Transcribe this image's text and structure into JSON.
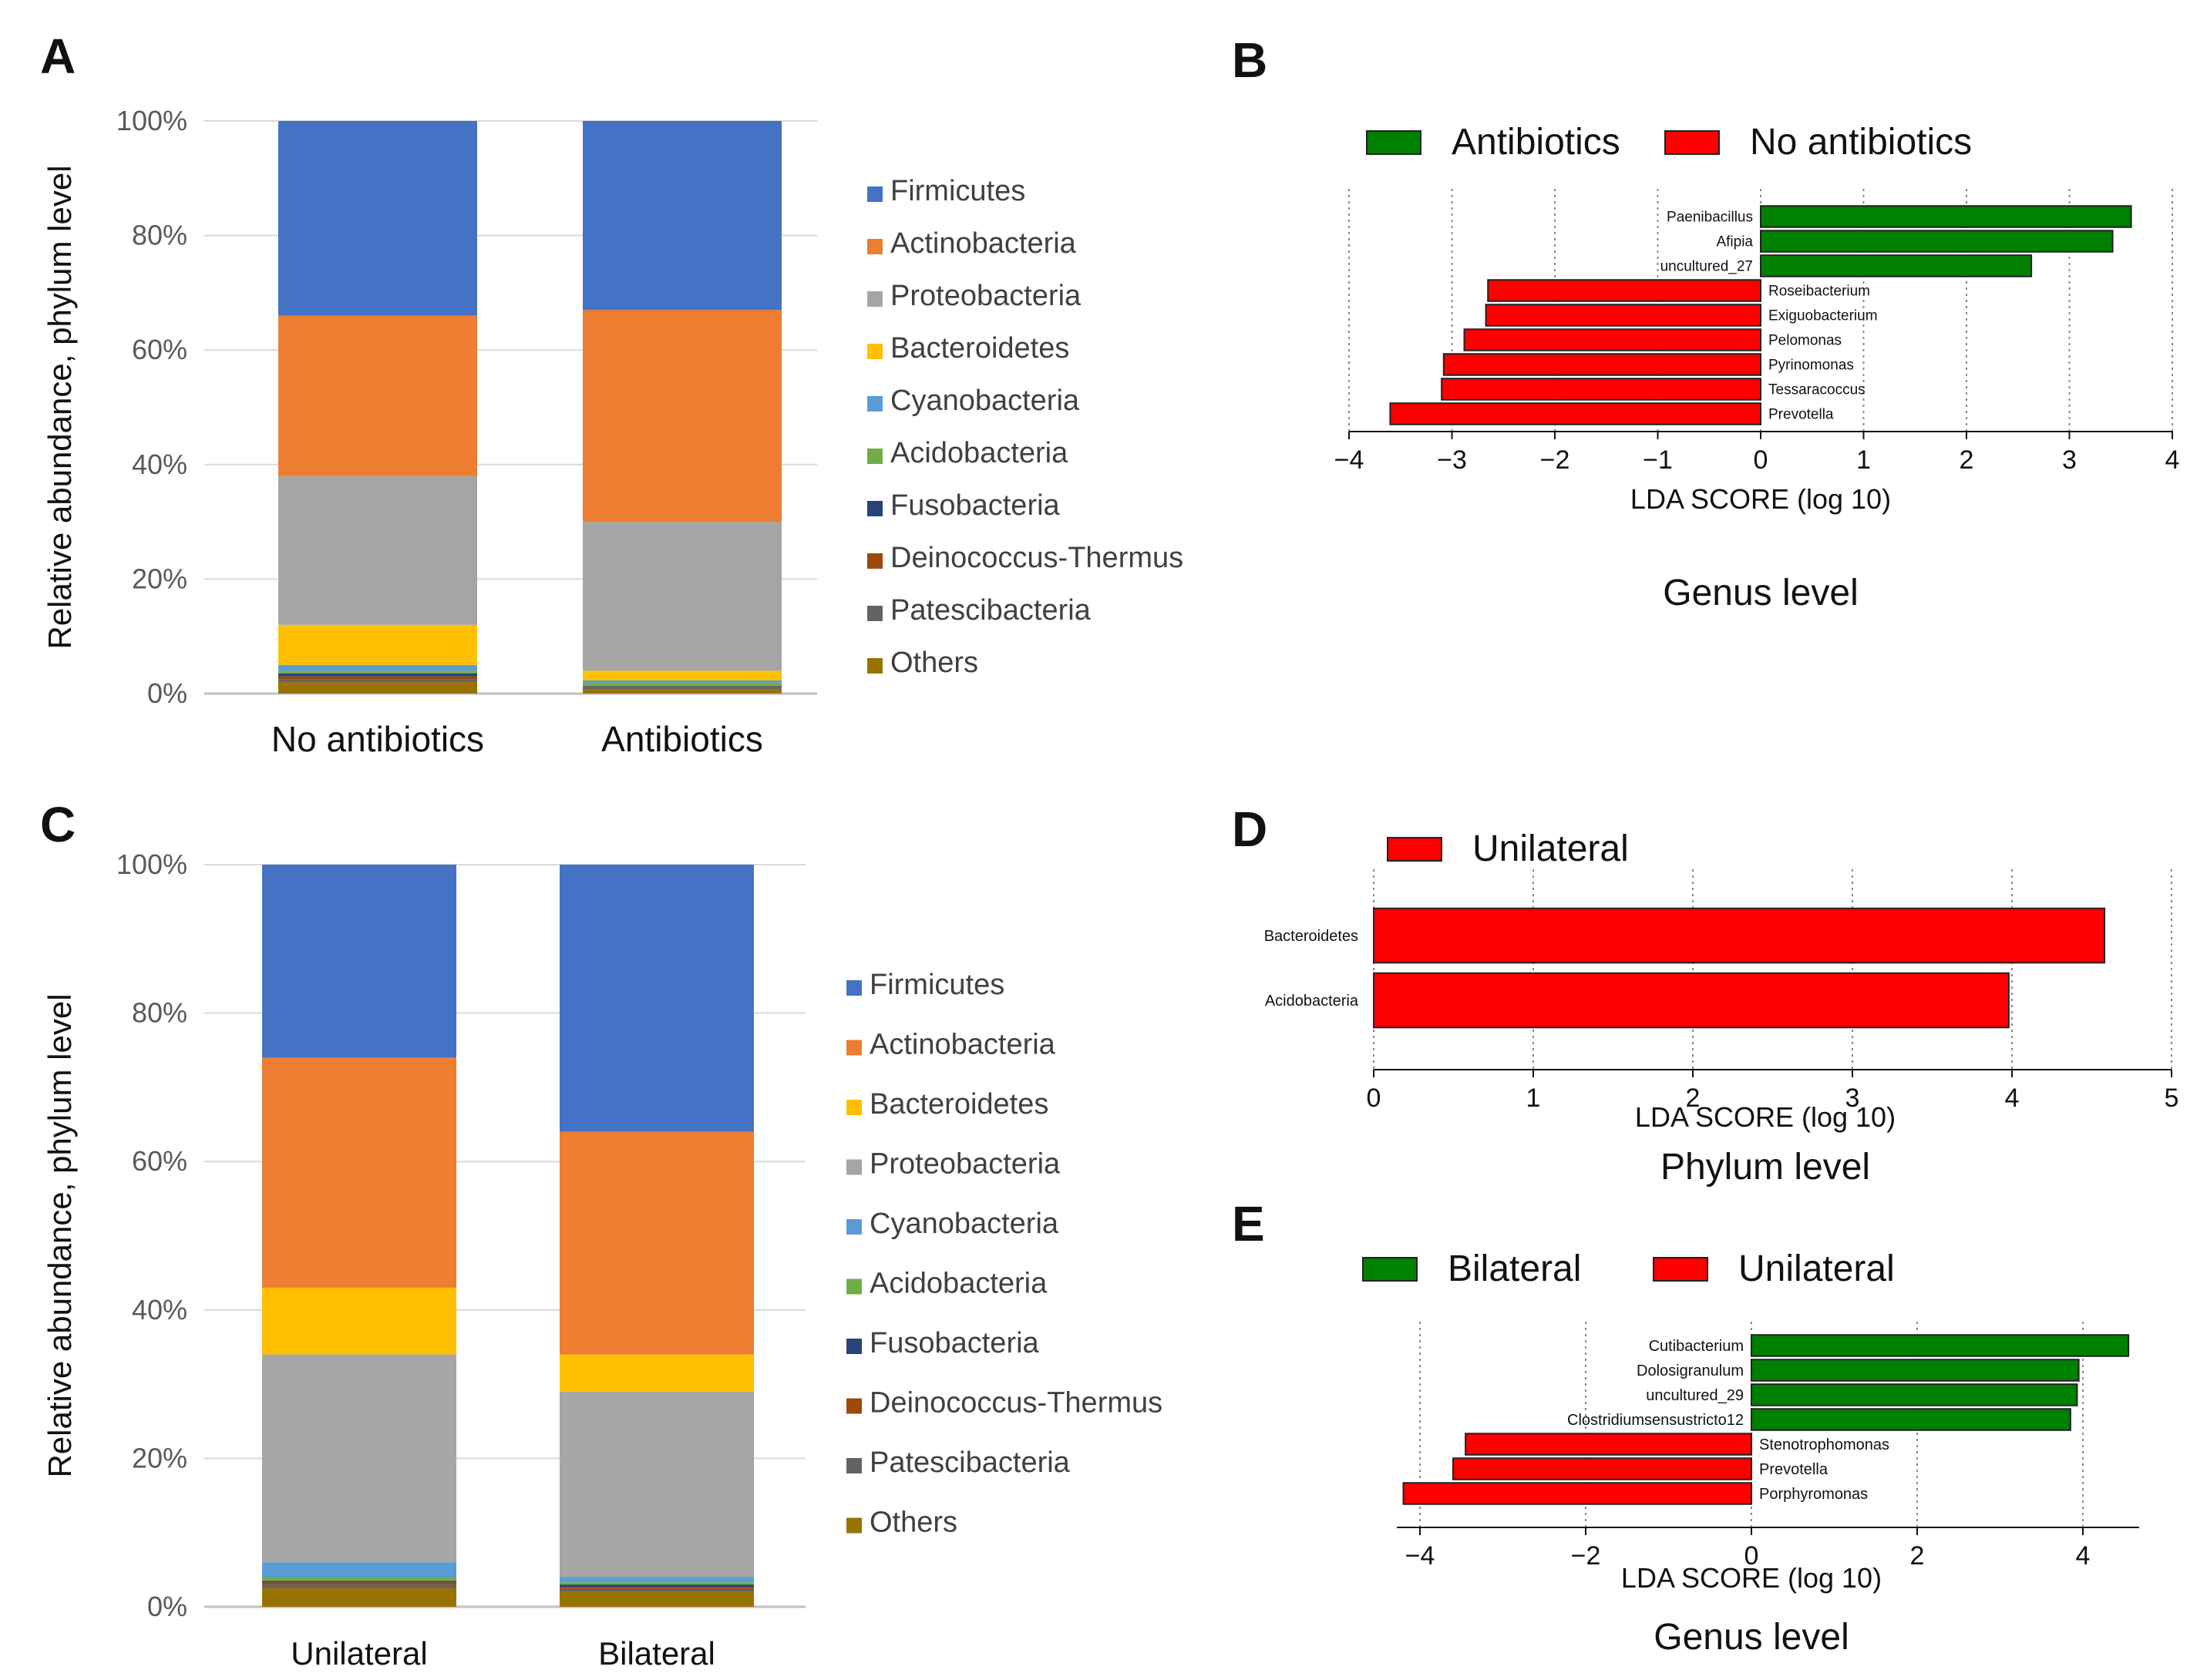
{
  "panel_letters": [
    "A",
    "B",
    "C",
    "D",
    "E"
  ],
  "colors": {
    "firmicutes": "#4472c4",
    "actinobacteria": "#ed7d31",
    "proteobacteria": "#a5a5a5",
    "bacteroidetes": "#ffc000",
    "cyanobacteria": "#5b9bd5",
    "acidobacteria": "#70ad47",
    "fusobacteria": "#264478",
    "deinococcus": "#9e480e",
    "patescibacteria": "#636363",
    "others": "#997300",
    "lda_green": "#008000",
    "lda_red": "#ff0000"
  },
  "chart_data": [
    {
      "panel": "A",
      "type": "bar",
      "stacked": true,
      "title": "",
      "ylabel": "Relative abundance, phylum level",
      "yticks": [
        "0%",
        "20%",
        "40%",
        "60%",
        "80%",
        "100%"
      ],
      "ylim": [
        0,
        100
      ],
      "categories": [
        "No antibiotics",
        "Antibiotics"
      ],
      "legend": [
        "Firmicutes",
        "Actinobacteria",
        "Proteobacteria",
        "Bacteroidetes",
        "Cyanobacteria",
        "Acidobacteria",
        "Fusobacteria",
        "Deinococcus-Thermus",
        "Patescibacteria",
        "Others"
      ],
      "stack_order": [
        "Others",
        "Patescibacteria",
        "Deinococcus-Thermus",
        "Fusobacteria",
        "Acidobacteria",
        "Cyanobacteria",
        "Bacteroidetes",
        "Proteobacteria",
        "Actinobacteria",
        "Firmicutes"
      ],
      "series": [
        {
          "name": "Others",
          "values": [
            2.0,
            0.8
          ]
        },
        {
          "name": "Patescibacteria",
          "values": [
            0.5,
            0.2
          ]
        },
        {
          "name": "Deinococcus-Thermus",
          "values": [
            0.5,
            0.2
          ]
        },
        {
          "name": "Fusobacteria",
          "values": [
            0.5,
            0.1
          ]
        },
        {
          "name": "Acidobacteria",
          "values": [
            0.5,
            0.6
          ]
        },
        {
          "name": "Cyanobacteria",
          "values": [
            1.0,
            0.4
          ]
        },
        {
          "name": "Bacteroidetes",
          "values": [
            7.0,
            1.7
          ]
        },
        {
          "name": "Proteobacteria",
          "values": [
            26.0,
            26.0
          ]
        },
        {
          "name": "Actinobacteria",
          "values": [
            28.0,
            37.0
          ]
        },
        {
          "name": "Firmicutes",
          "values": [
            34.0,
            33.0
          ]
        }
      ]
    },
    {
      "panel": "B",
      "type": "bar",
      "orientation": "horizontal",
      "legend": [
        "Antibiotics",
        "No antibiotics"
      ],
      "xlabel": "LDA SCORE (log 10)",
      "subtitle": "Genus level",
      "xlim": [
        -4,
        4
      ],
      "xticks": [
        "−4",
        "−3",
        "−2",
        "−1",
        "0",
        "1",
        "2",
        "3",
        "4"
      ],
      "bars": [
        {
          "label": "Paenibacillus",
          "value": 3.6,
          "group": "Antibiotics"
        },
        {
          "label": "Afipia",
          "value": 3.42,
          "group": "Antibiotics"
        },
        {
          "label": "uncultured_27",
          "value": 2.63,
          "group": "Antibiotics"
        },
        {
          "label": "Roseibacterium",
          "value": -2.65,
          "group": "No antibiotics"
        },
        {
          "label": "Exiguobacterium",
          "value": -2.67,
          "group": "No antibiotics"
        },
        {
          "label": "Pelomonas",
          "value": -2.88,
          "group": "No antibiotics"
        },
        {
          "label": "Pyrinomonas",
          "value": -3.08,
          "group": "No antibiotics"
        },
        {
          "label": "Tessaracoccus",
          "value": -3.1,
          "group": "No antibiotics"
        },
        {
          "label": "Prevotella",
          "value": -3.6,
          "group": "No antibiotics"
        }
      ]
    },
    {
      "panel": "C",
      "type": "bar",
      "stacked": true,
      "title": "",
      "ylabel": "Relative abundance, phylum level",
      "yticks": [
        "0%",
        "20%",
        "40%",
        "60%",
        "80%",
        "100%"
      ],
      "ylim": [
        0,
        100
      ],
      "categories": [
        "Unilateral",
        "Bilateral"
      ],
      "legend": [
        "Firmicutes",
        "Actinobacteria",
        "Bacteroidetes",
        "Proteobacteria",
        "Cyanobacteria",
        "Acidobacteria",
        "Fusobacteria",
        "Deinococcus-Thermus",
        "Patescibacteria",
        "Others"
      ],
      "stack_order": [
        "Others",
        "Patescibacteria",
        "Deinococcus-Thermus",
        "Fusobacteria",
        "Acidobacteria",
        "Cyanobacteria",
        "Proteobacteria",
        "Bacteroidetes",
        "Actinobacteria",
        "Firmicutes"
      ],
      "series": [
        {
          "name": "Others",
          "values": [
            2.5,
            2.0
          ]
        },
        {
          "name": "Patescibacteria",
          "values": [
            0.5,
            0.4
          ]
        },
        {
          "name": "Deinococcus-Thermus",
          "values": [
            0.3,
            0.3
          ]
        },
        {
          "name": "Fusobacteria",
          "values": [
            0.2,
            0.3
          ]
        },
        {
          "name": "Acidobacteria",
          "values": [
            0.5,
            0.3
          ]
        },
        {
          "name": "Cyanobacteria",
          "values": [
            2.0,
            0.7
          ]
        },
        {
          "name": "Proteobacteria",
          "values": [
            28.0,
            25.0
          ]
        },
        {
          "name": "Bacteroidetes",
          "values": [
            9.0,
            5.0
          ]
        },
        {
          "name": "Actinobacteria",
          "values": [
            31.0,
            30.0
          ]
        },
        {
          "name": "Firmicutes",
          "values": [
            26.0,
            36.0
          ]
        }
      ]
    },
    {
      "panel": "D",
      "type": "bar",
      "orientation": "horizontal",
      "legend": [
        "Unilateral"
      ],
      "xlabel": "LDA SCORE (log 10)",
      "subtitle": "Phylum level",
      "xlim": [
        0,
        5
      ],
      "xticks": [
        "0",
        "1",
        "2",
        "3",
        "4",
        "5"
      ],
      "bars": [
        {
          "label": "Bacteroidetes",
          "value": 4.58,
          "group": "Unilateral"
        },
        {
          "label": "Acidobacteria",
          "value": 3.98,
          "group": "Unilateral"
        }
      ]
    },
    {
      "panel": "E",
      "type": "bar",
      "orientation": "horizontal",
      "legend": [
        "Bilateral",
        "Unilateral"
      ],
      "xlabel": "LDA SCORE (log 10)",
      "subtitle": "Genus level",
      "xlim": [
        -4.2,
        4.6
      ],
      "xticks": [
        "−4",
        "−2",
        "0",
        "2",
        "4"
      ],
      "xtick_values": [
        -4,
        -2,
        0,
        2,
        4
      ],
      "bars": [
        {
          "label": "Cutibacterium",
          "value": 4.55,
          "group": "Bilateral"
        },
        {
          "label": "Dolosigranulum",
          "value": 3.95,
          "group": "Bilateral"
        },
        {
          "label": "uncultured_29",
          "value": 3.93,
          "group": "Bilateral"
        },
        {
          "label": "Clostridiumsensustricto12",
          "value": 3.85,
          "group": "Bilateral"
        },
        {
          "label": "Stenotrophomonas",
          "value": -3.45,
          "group": "Unilateral"
        },
        {
          "label": "Prevotella",
          "value": -3.6,
          "group": "Unilateral"
        },
        {
          "label": "Porphyromonas",
          "value": -4.2,
          "group": "Unilateral"
        }
      ]
    }
  ]
}
